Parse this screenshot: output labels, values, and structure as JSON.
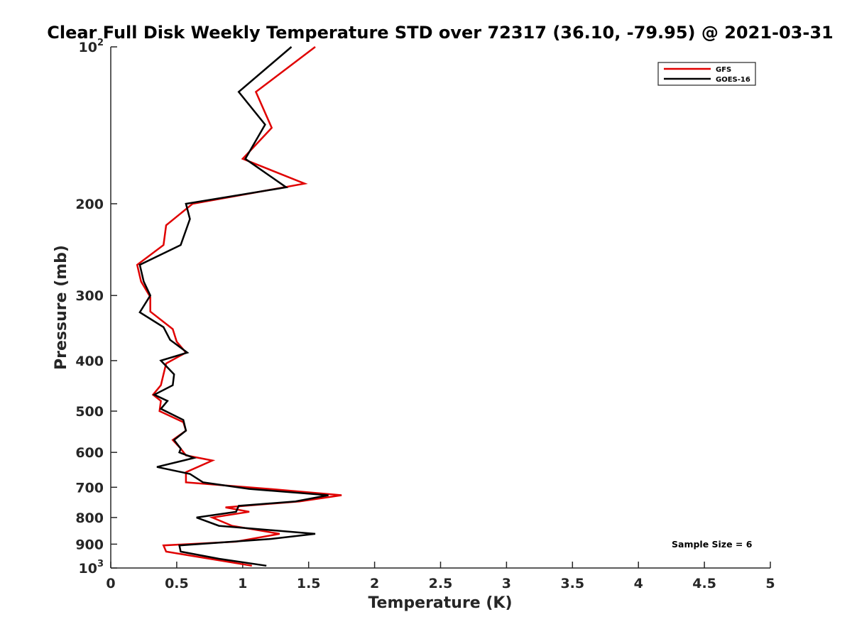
{
  "chart_data": {
    "type": "line",
    "title": "Clear Full Disk Weekly Temperature STD over 72317 (36.10, -79.95) @ 2021-03-31",
    "xlabel": "Temperature (K)",
    "ylabel": "Pressure (mb)",
    "xlim": [
      0,
      5
    ],
    "ylim": [
      100,
      1000
    ],
    "yscale": "log",
    "y_reversed": true,
    "grid": false,
    "legend_position": "top-right",
    "x_ticks": [
      "0",
      "0.5",
      "1",
      "1.5",
      "2",
      "2.5",
      "3",
      "3.5",
      "4",
      "4.5",
      "5"
    ],
    "y_ticks": [
      {
        "value": 100,
        "base": "10",
        "exp": "2"
      },
      {
        "value": 200,
        "label": "200"
      },
      {
        "value": 300,
        "label": "300"
      },
      {
        "value": 400,
        "label": "400"
      },
      {
        "value": 500,
        "label": "500"
      },
      {
        "value": 600,
        "label": "600"
      },
      {
        "value": 700,
        "label": "700"
      },
      {
        "value": 800,
        "label": "800"
      },
      {
        "value": 900,
        "label": "900"
      },
      {
        "value": 1000,
        "base": "10",
        "exp": "3"
      }
    ],
    "annotation": "Sample Size = 6",
    "series": [
      {
        "name": "GFS",
        "color": "#e00000",
        "points": [
          {
            "x": 1.55,
            "p": 100
          },
          {
            "x": 1.1,
            "p": 122
          },
          {
            "x": 1.22,
            "p": 143
          },
          {
            "x": 1.0,
            "p": 164
          },
          {
            "x": 1.47,
            "p": 183
          },
          {
            "x": 0.62,
            "p": 200
          },
          {
            "x": 0.42,
            "p": 220
          },
          {
            "x": 0.4,
            "p": 240
          },
          {
            "x": 0.2,
            "p": 262
          },
          {
            "x": 0.23,
            "p": 282
          },
          {
            "x": 0.3,
            "p": 302
          },
          {
            "x": 0.3,
            "p": 322
          },
          {
            "x": 0.47,
            "p": 348
          },
          {
            "x": 0.5,
            "p": 368
          },
          {
            "x": 0.57,
            "p": 386
          },
          {
            "x": 0.42,
            "p": 405
          },
          {
            "x": 0.4,
            "p": 425
          },
          {
            "x": 0.38,
            "p": 446
          },
          {
            "x": 0.32,
            "p": 465
          },
          {
            "x": 0.38,
            "p": 478
          },
          {
            "x": 0.37,
            "p": 500
          },
          {
            "x": 0.55,
            "p": 525
          },
          {
            "x": 0.57,
            "p": 545
          },
          {
            "x": 0.47,
            "p": 568
          },
          {
            "x": 0.53,
            "p": 590
          },
          {
            "x": 0.57,
            "p": 608
          },
          {
            "x": 0.77,
            "p": 622
          },
          {
            "x": 0.57,
            "p": 655
          },
          {
            "x": 0.57,
            "p": 685
          },
          {
            "x": 1.2,
            "p": 705
          },
          {
            "x": 1.75,
            "p": 725
          },
          {
            "x": 1.43,
            "p": 745
          },
          {
            "x": 0.87,
            "p": 765
          },
          {
            "x": 1.05,
            "p": 780
          },
          {
            "x": 0.77,
            "p": 800
          },
          {
            "x": 0.92,
            "p": 830
          },
          {
            "x": 1.28,
            "p": 860
          },
          {
            "x": 0.95,
            "p": 890
          },
          {
            "x": 0.4,
            "p": 905
          },
          {
            "x": 0.42,
            "p": 930
          },
          {
            "x": 0.75,
            "p": 960
          },
          {
            "x": 1.07,
            "p": 990
          }
        ]
      },
      {
        "name": "GOES-16",
        "color": "#000000",
        "points": [
          {
            "x": 1.37,
            "p": 100
          },
          {
            "x": 0.97,
            "p": 122
          },
          {
            "x": 1.17,
            "p": 141
          },
          {
            "x": 1.02,
            "p": 164
          },
          {
            "x": 1.33,
            "p": 186
          },
          {
            "x": 0.57,
            "p": 200
          },
          {
            "x": 0.6,
            "p": 214
          },
          {
            "x": 0.53,
            "p": 240
          },
          {
            "x": 0.22,
            "p": 262
          },
          {
            "x": 0.25,
            "p": 282
          },
          {
            "x": 0.3,
            "p": 300
          },
          {
            "x": 0.22,
            "p": 323
          },
          {
            "x": 0.4,
            "p": 345
          },
          {
            "x": 0.45,
            "p": 365
          },
          {
            "x": 0.58,
            "p": 386
          },
          {
            "x": 0.38,
            "p": 400
          },
          {
            "x": 0.48,
            "p": 425
          },
          {
            "x": 0.47,
            "p": 446
          },
          {
            "x": 0.33,
            "p": 465
          },
          {
            "x": 0.43,
            "p": 478
          },
          {
            "x": 0.38,
            "p": 495
          },
          {
            "x": 0.55,
            "p": 520
          },
          {
            "x": 0.57,
            "p": 545
          },
          {
            "x": 0.48,
            "p": 568
          },
          {
            "x": 0.53,
            "p": 590
          },
          {
            "x": 0.52,
            "p": 600
          },
          {
            "x": 0.63,
            "p": 615
          },
          {
            "x": 0.35,
            "p": 640
          },
          {
            "x": 0.6,
            "p": 660
          },
          {
            "x": 0.7,
            "p": 685
          },
          {
            "x": 1.05,
            "p": 705
          },
          {
            "x": 1.65,
            "p": 725
          },
          {
            "x": 1.4,
            "p": 745
          },
          {
            "x": 0.97,
            "p": 760
          },
          {
            "x": 0.95,
            "p": 780
          },
          {
            "x": 0.65,
            "p": 800
          },
          {
            "x": 0.82,
            "p": 830
          },
          {
            "x": 1.55,
            "p": 860
          },
          {
            "x": 1.2,
            "p": 880
          },
          {
            "x": 0.52,
            "p": 905
          },
          {
            "x": 0.53,
            "p": 930
          },
          {
            "x": 0.82,
            "p": 960
          },
          {
            "x": 1.18,
            "p": 990
          }
        ]
      }
    ]
  }
}
